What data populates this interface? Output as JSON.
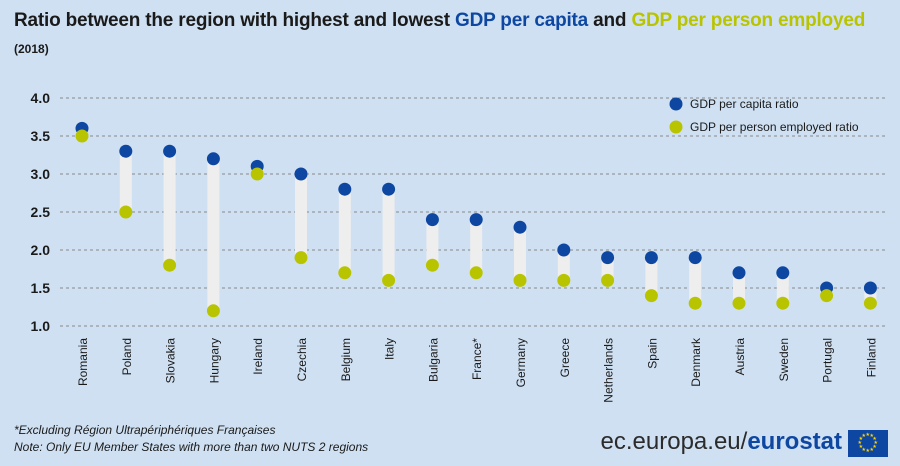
{
  "title": {
    "prefix": "Ratio between the region with highest and lowest",
    "part1": "GDP per capita",
    "and": "and",
    "part2": "GDP per person employed"
  },
  "subtitle": "(2018)",
  "colors": {
    "capita": "#0e47a1",
    "employed": "#b9c400",
    "bar": "#eeeeee",
    "grid": "#8a8a8a"
  },
  "chart_data": {
    "type": "dumbbell",
    "categories": [
      "Romania",
      "Poland",
      "Slovakia",
      "Hungary",
      "Ireland",
      "Czechia",
      "Belgium",
      "Italy",
      "Bulgaria",
      "France*",
      "Germany",
      "Greece",
      "Netherlands",
      "Spain",
      "Denmark",
      "Austria",
      "Sweden",
      "Portugal",
      "Finland"
    ],
    "series": [
      {
        "name": "GDP per capita ratio",
        "values": [
          3.6,
          3.3,
          3.3,
          3.2,
          3.1,
          3.0,
          2.8,
          2.8,
          2.4,
          2.4,
          2.3,
          2.0,
          1.9,
          1.9,
          1.9,
          1.7,
          1.7,
          1.5,
          1.5
        ]
      },
      {
        "name": "GDP per person employed ratio",
        "values": [
          3.5,
          2.5,
          1.8,
          1.2,
          3.0,
          1.9,
          1.7,
          1.6,
          1.8,
          1.7,
          1.6,
          1.6,
          1.6,
          1.4,
          1.3,
          1.3,
          1.3,
          1.4,
          1.3
        ]
      }
    ],
    "yticks": [
      "1.0",
      "1.5",
      "2.0",
      "2.5",
      "3.0",
      "3.5",
      "4.0"
    ],
    "ylim": [
      1.0,
      4.0
    ],
    "legend": "top-right"
  },
  "footnotes": {
    "note1": "*Excluding Région Ultrapériphériques Françaises",
    "note2": "Note: Only EU Member States with more than two NUTS 2 regions"
  },
  "brand": {
    "domain": "ec.europa.eu/",
    "name": "eurostat"
  }
}
